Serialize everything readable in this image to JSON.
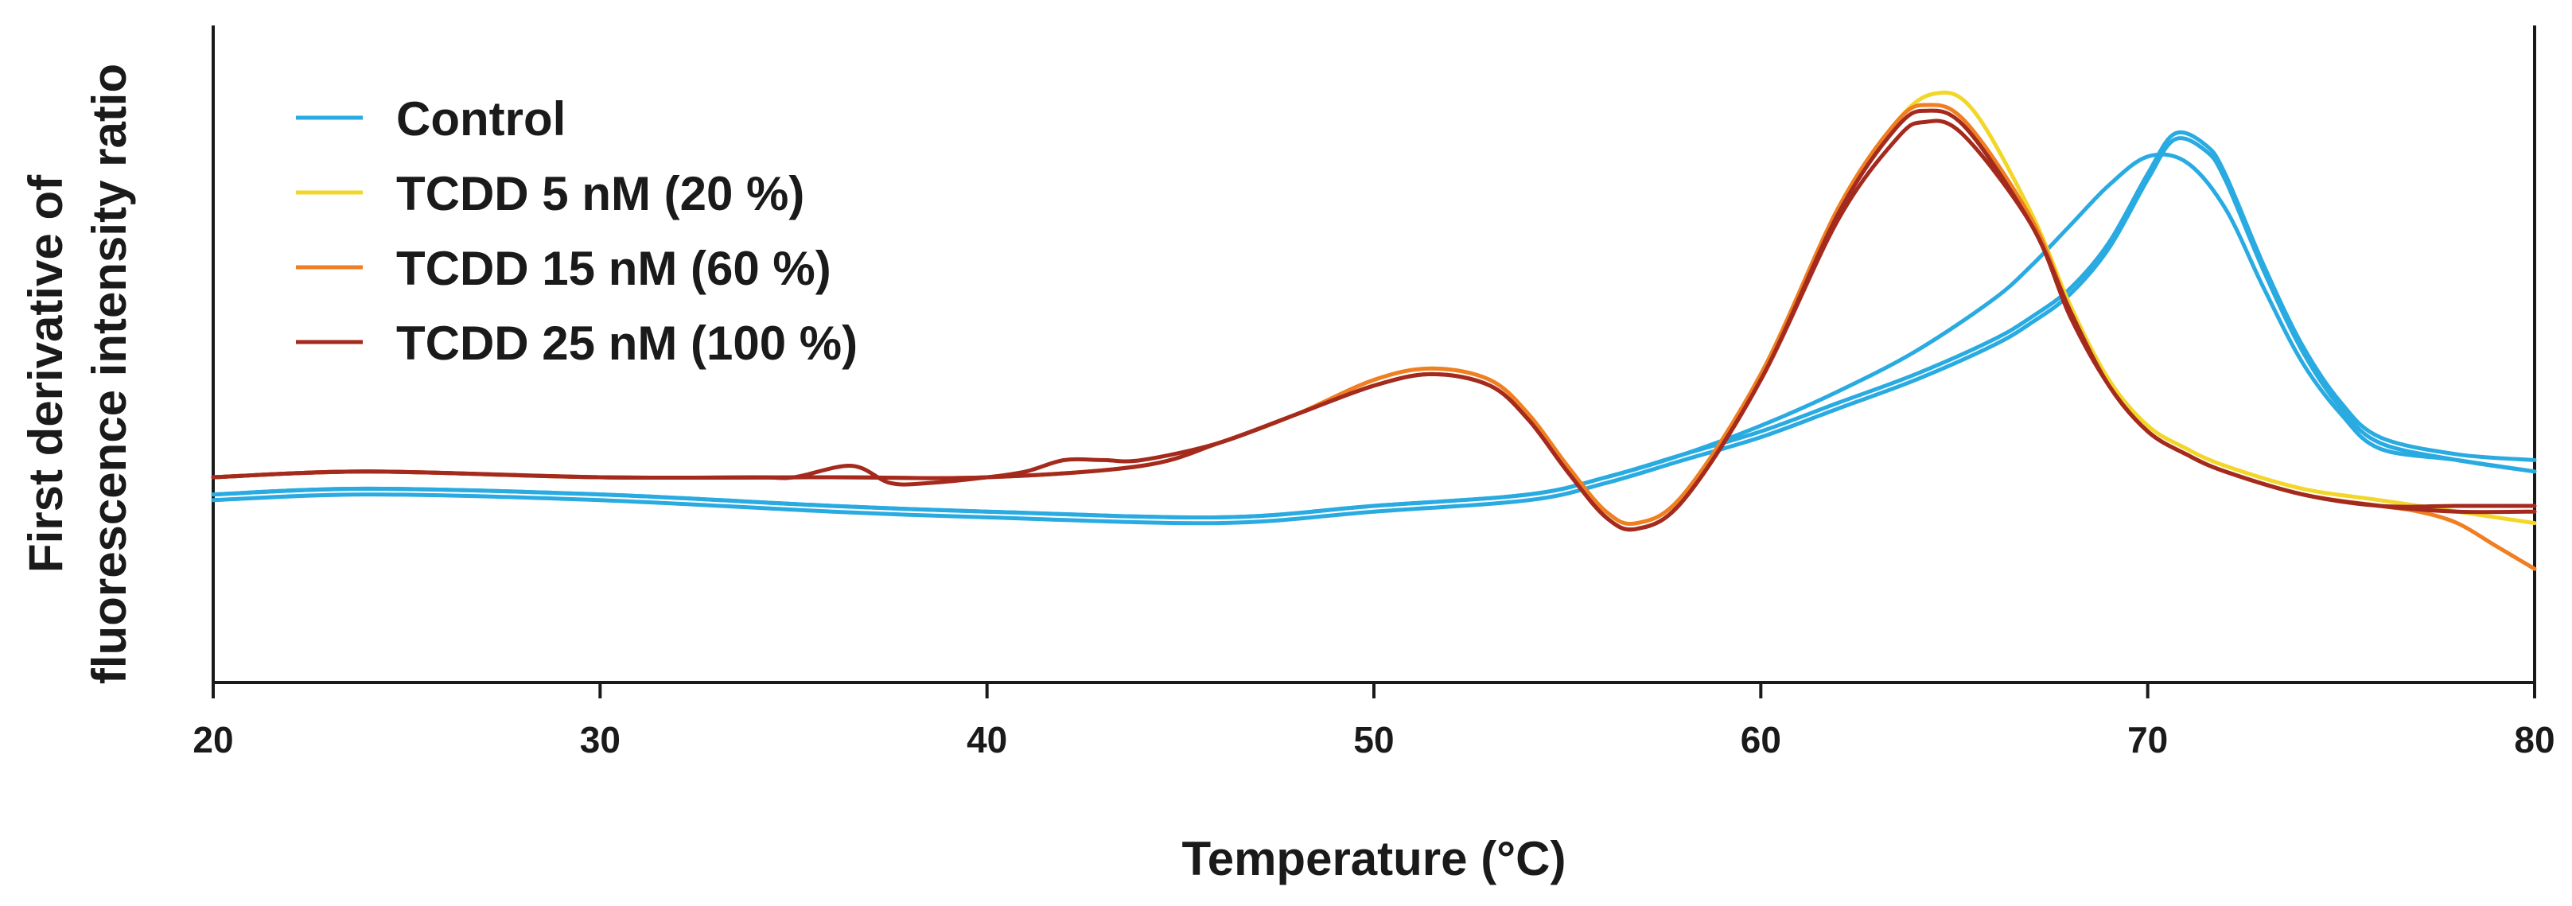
{
  "chart_data": {
    "type": "line",
    "title": "",
    "xlabel": "Temperature (°C)",
    "ylabel_line1": "First derivative of",
    "ylabel_line2": "fluorescence intensity ratio",
    "xlim": [
      20,
      80
    ],
    "ylim": [
      0,
      1
    ],
    "xticks": [
      20,
      30,
      40,
      50,
      60,
      70,
      80
    ],
    "xtick_labels": [
      "20",
      "30",
      "40",
      "50",
      "60",
      "70",
      "80"
    ],
    "grid": false,
    "legend_position": "top-left",
    "legend": [
      {
        "name": "Control",
        "color": "#29abe2"
      },
      {
        "name": "TCDD 5 nM (20 %)",
        "color": "#f2d72a"
      },
      {
        "name": "TCDD 15 nM (60 %)",
        "color": "#f07f23"
      },
      {
        "name": "TCDD 25 nM (100 %)",
        "color": "#a52a1e"
      }
    ],
    "series": [
      {
        "name": "Control",
        "color": "#29abe2",
        "x": [
          20,
          24,
          30,
          36,
          40,
          46,
          50,
          54,
          56,
          58,
          60,
          62,
          64,
          66,
          67,
          68,
          69,
          70,
          71,
          72,
          73,
          74,
          75,
          76,
          78,
          80
        ],
        "y": [
          0.22,
          0.23,
          0.22,
          0.2,
          0.19,
          0.18,
          0.2,
          0.22,
          0.25,
          0.29,
          0.34,
          0.4,
          0.47,
          0.56,
          0.62,
          0.69,
          0.76,
          0.81,
          0.8,
          0.72,
          0.58,
          0.45,
          0.36,
          0.3,
          0.28,
          0.26
        ]
      },
      {
        "name": "Control",
        "color": "#29abe2",
        "x": [
          20,
          24,
          30,
          36,
          40,
          46,
          50,
          54,
          56,
          58,
          60,
          62,
          64,
          66,
          67,
          68,
          69,
          70,
          70.7,
          71.5,
          72,
          73,
          74,
          75,
          76,
          78,
          80
        ],
        "y": [
          0.22,
          0.23,
          0.22,
          0.2,
          0.19,
          0.18,
          0.2,
          0.22,
          0.25,
          0.29,
          0.33,
          0.38,
          0.43,
          0.49,
          0.53,
          0.58,
          0.66,
          0.78,
          0.85,
          0.83,
          0.78,
          0.62,
          0.48,
          0.38,
          0.32,
          0.29,
          0.28
        ]
      },
      {
        "name": "Control",
        "color": "#29abe2",
        "x": [
          20,
          24,
          30,
          36,
          40,
          46,
          50,
          54,
          56,
          58,
          60,
          62,
          64,
          66,
          67,
          68,
          69,
          70,
          70.7,
          71.5,
          72,
          73,
          74,
          75,
          76,
          78,
          80
        ],
        "y": [
          0.21,
          0.22,
          0.21,
          0.19,
          0.18,
          0.17,
          0.19,
          0.21,
          0.24,
          0.28,
          0.32,
          0.37,
          0.42,
          0.48,
          0.52,
          0.57,
          0.65,
          0.77,
          0.84,
          0.82,
          0.77,
          0.61,
          0.47,
          0.37,
          0.31,
          0.28,
          0.26
        ]
      },
      {
        "name": "TCDD 5 nM (20 %)",
        "color": "#f2d72a",
        "x": [
          20,
          24,
          30,
          36,
          40,
          44,
          46,
          48,
          50,
          51.5,
          53,
          54,
          55,
          56,
          56.8,
          58,
          60,
          62,
          63.5,
          64.5,
          65.5,
          67,
          68,
          69,
          70,
          71,
          72,
          74,
          76,
          78,
          80
        ],
        "y": [
          0.25,
          0.26,
          0.25,
          0.25,
          0.25,
          0.27,
          0.31,
          0.36,
          0.42,
          0.44,
          0.42,
          0.36,
          0.27,
          0.19,
          0.17,
          0.22,
          0.43,
          0.72,
          0.87,
          0.92,
          0.89,
          0.71,
          0.55,
          0.42,
          0.34,
          0.3,
          0.27,
          0.23,
          0.21,
          0.19,
          0.17
        ]
      },
      {
        "name": "TCDD 15 nM (60 %)",
        "color": "#f07f23",
        "x": [
          20,
          24,
          30,
          36,
          40,
          44,
          46,
          48,
          50,
          51.5,
          53,
          54,
          55,
          56,
          56.8,
          58,
          60,
          62,
          63.5,
          64.3,
          65.3,
          67,
          68,
          69,
          70,
          71,
          72,
          74,
          76,
          77,
          78,
          79,
          80
        ],
        "y": [
          0.25,
          0.26,
          0.25,
          0.25,
          0.25,
          0.27,
          0.31,
          0.36,
          0.42,
          0.44,
          0.42,
          0.36,
          0.27,
          0.19,
          0.17,
          0.22,
          0.43,
          0.72,
          0.87,
          0.9,
          0.87,
          0.7,
          0.54,
          0.41,
          0.33,
          0.29,
          0.26,
          0.22,
          0.2,
          0.19,
          0.17,
          0.13,
          0.09
        ]
      },
      {
        "name": "TCDD 25 nM (100 %)",
        "color": "#a52a1e",
        "x": [
          20,
          24,
          30,
          34,
          35,
          36.5,
          37.5,
          38.5,
          40,
          41,
          42,
          43,
          44,
          46,
          48,
          50,
          51.5,
          53,
          54,
          55,
          56,
          56.8,
          58,
          60,
          62,
          63.5,
          64.2,
          65.2,
          67,
          68,
          69,
          70,
          71,
          72,
          74,
          76,
          78,
          80
        ],
        "y": [
          0.25,
          0.26,
          0.25,
          0.25,
          0.25,
          0.27,
          0.24,
          0.24,
          0.25,
          0.26,
          0.28,
          0.28,
          0.28,
          0.31,
          0.36,
          0.41,
          0.43,
          0.41,
          0.35,
          0.26,
          0.18,
          0.16,
          0.21,
          0.42,
          0.7,
          0.84,
          0.87,
          0.85,
          0.69,
          0.53,
          0.41,
          0.33,
          0.29,
          0.26,
          0.22,
          0.2,
          0.2,
          0.2
        ]
      },
      {
        "name": "TCDD 25 nM (100 %)",
        "color": "#a52a1e",
        "x": [
          20,
          24,
          30,
          36,
          40,
          44,
          46,
          48,
          50,
          51.5,
          53,
          54,
          55,
          56,
          56.8,
          58,
          60,
          62,
          63.5,
          64.3,
          65.3,
          67,
          68,
          69,
          70,
          71,
          72,
          74,
          76,
          78,
          80
        ],
        "y": [
          0.25,
          0.26,
          0.25,
          0.25,
          0.25,
          0.27,
          0.31,
          0.36,
          0.41,
          0.43,
          0.41,
          0.35,
          0.26,
          0.18,
          0.16,
          0.21,
          0.42,
          0.71,
          0.86,
          0.89,
          0.86,
          0.69,
          0.54,
          0.41,
          0.33,
          0.29,
          0.26,
          0.22,
          0.2,
          0.19,
          0.19
        ]
      }
    ]
  }
}
